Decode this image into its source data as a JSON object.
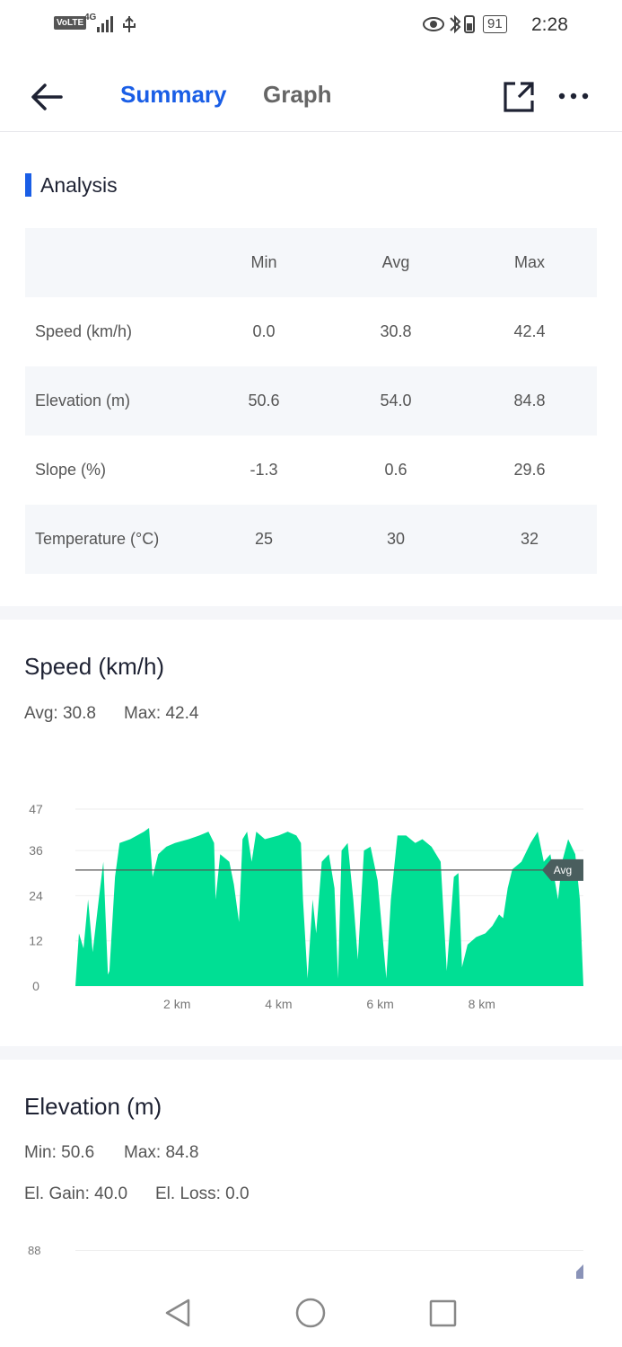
{
  "status_bar": {
    "network": "VoLTE",
    "signal": "4G",
    "battery": "91",
    "time": "2:28"
  },
  "header": {
    "tabs": [
      "Summary",
      "Graph"
    ]
  },
  "analysis": {
    "title": "Analysis",
    "table": {
      "header": [
        "Min",
        "Avg",
        "Max"
      ],
      "rows": [
        [
          "Speed (km/h)",
          "0.0",
          "30.8",
          "42.4"
        ],
        [
          "Elevation (m)",
          "50.6",
          "54.0",
          "84.8"
        ],
        [
          "Slope (%)",
          "-1.3",
          "0.6",
          "29.6"
        ],
        [
          "Temperature (°C)",
          "25",
          "30",
          "32"
        ]
      ]
    }
  },
  "speed": {
    "title": "Speed (km/h)",
    "stats": [
      "Avg: 30.8",
      "Max: 42.4"
    ],
    "chart_data": {
      "type": "area",
      "color": "#00df94",
      "x": [
        0,
        0.07,
        0.16,
        0.25,
        0.34,
        0.46,
        0.55,
        0.64,
        0.67,
        0.78,
        0.87,
        1.08,
        1.35,
        1.45,
        1.52,
        1.63,
        1.79,
        1.96,
        2.23,
        2.44,
        2.62,
        2.73,
        2.76,
        2.85,
        3.03,
        3.12,
        3.22,
        3.29,
        3.38,
        3.47,
        3.56,
        3.73,
        4.0,
        4.18,
        4.35,
        4.44,
        4.48,
        4.57,
        4.67,
        4.74,
        4.85,
        4.99,
        5.1,
        5.17,
        5.24,
        5.36,
        5.47,
        5.56,
        5.68,
        5.81,
        5.95,
        6.12,
        6.21,
        6.34,
        6.51,
        6.69,
        6.83,
        7.01,
        7.19,
        7.31,
        7.45,
        7.54,
        7.61,
        7.72,
        7.89,
        8.07,
        8.21,
        8.34,
        8.42,
        8.51,
        8.6,
        8.78,
        8.96,
        9.1,
        9.22,
        9.35,
        9.5,
        9.58,
        9.7,
        9.84,
        9.93,
        10.0
      ],
      "values": [
        0,
        14,
        10,
        23,
        9,
        23,
        33,
        3,
        4,
        29,
        38,
        39,
        41,
        42,
        29,
        35,
        37,
        38,
        39,
        40,
        41,
        38,
        23,
        35,
        33,
        27,
        17,
        39,
        41,
        33,
        41,
        39,
        40,
        41,
        40,
        38,
        23,
        2,
        23,
        14,
        33,
        35,
        26,
        2,
        36,
        38,
        23,
        7,
        36,
        37,
        28,
        2,
        23,
        40,
        40,
        38,
        39,
        37,
        33,
        4,
        29,
        30,
        5,
        11,
        13,
        14,
        16,
        19,
        18,
        26,
        31,
        33,
        38,
        41,
        33,
        35,
        23,
        33,
        39,
        35,
        23,
        0
      ],
      "xlim": [
        0,
        10
      ],
      "ylim": [
        0,
        47
      ],
      "xticks": [
        {
          "value": 2,
          "label": "2 km"
        },
        {
          "value": 4,
          "label": "4 km"
        },
        {
          "value": 6,
          "label": "6 km"
        },
        {
          "value": 8,
          "label": "8 km"
        }
      ],
      "yticks": [
        0,
        12,
        24,
        36,
        47
      ],
      "grid": true,
      "avg_line": {
        "value": 30.8,
        "label": "Avg"
      }
    }
  },
  "elevation": {
    "title": "Elevation (m)",
    "stats": [
      "Min: 50.6",
      "Max: 84.8"
    ],
    "stats2": [
      "El. Gain: 40.0",
      "El. Loss: 0.0"
    ],
    "chart_data": {
      "yticks": [
        88
      ]
    }
  }
}
